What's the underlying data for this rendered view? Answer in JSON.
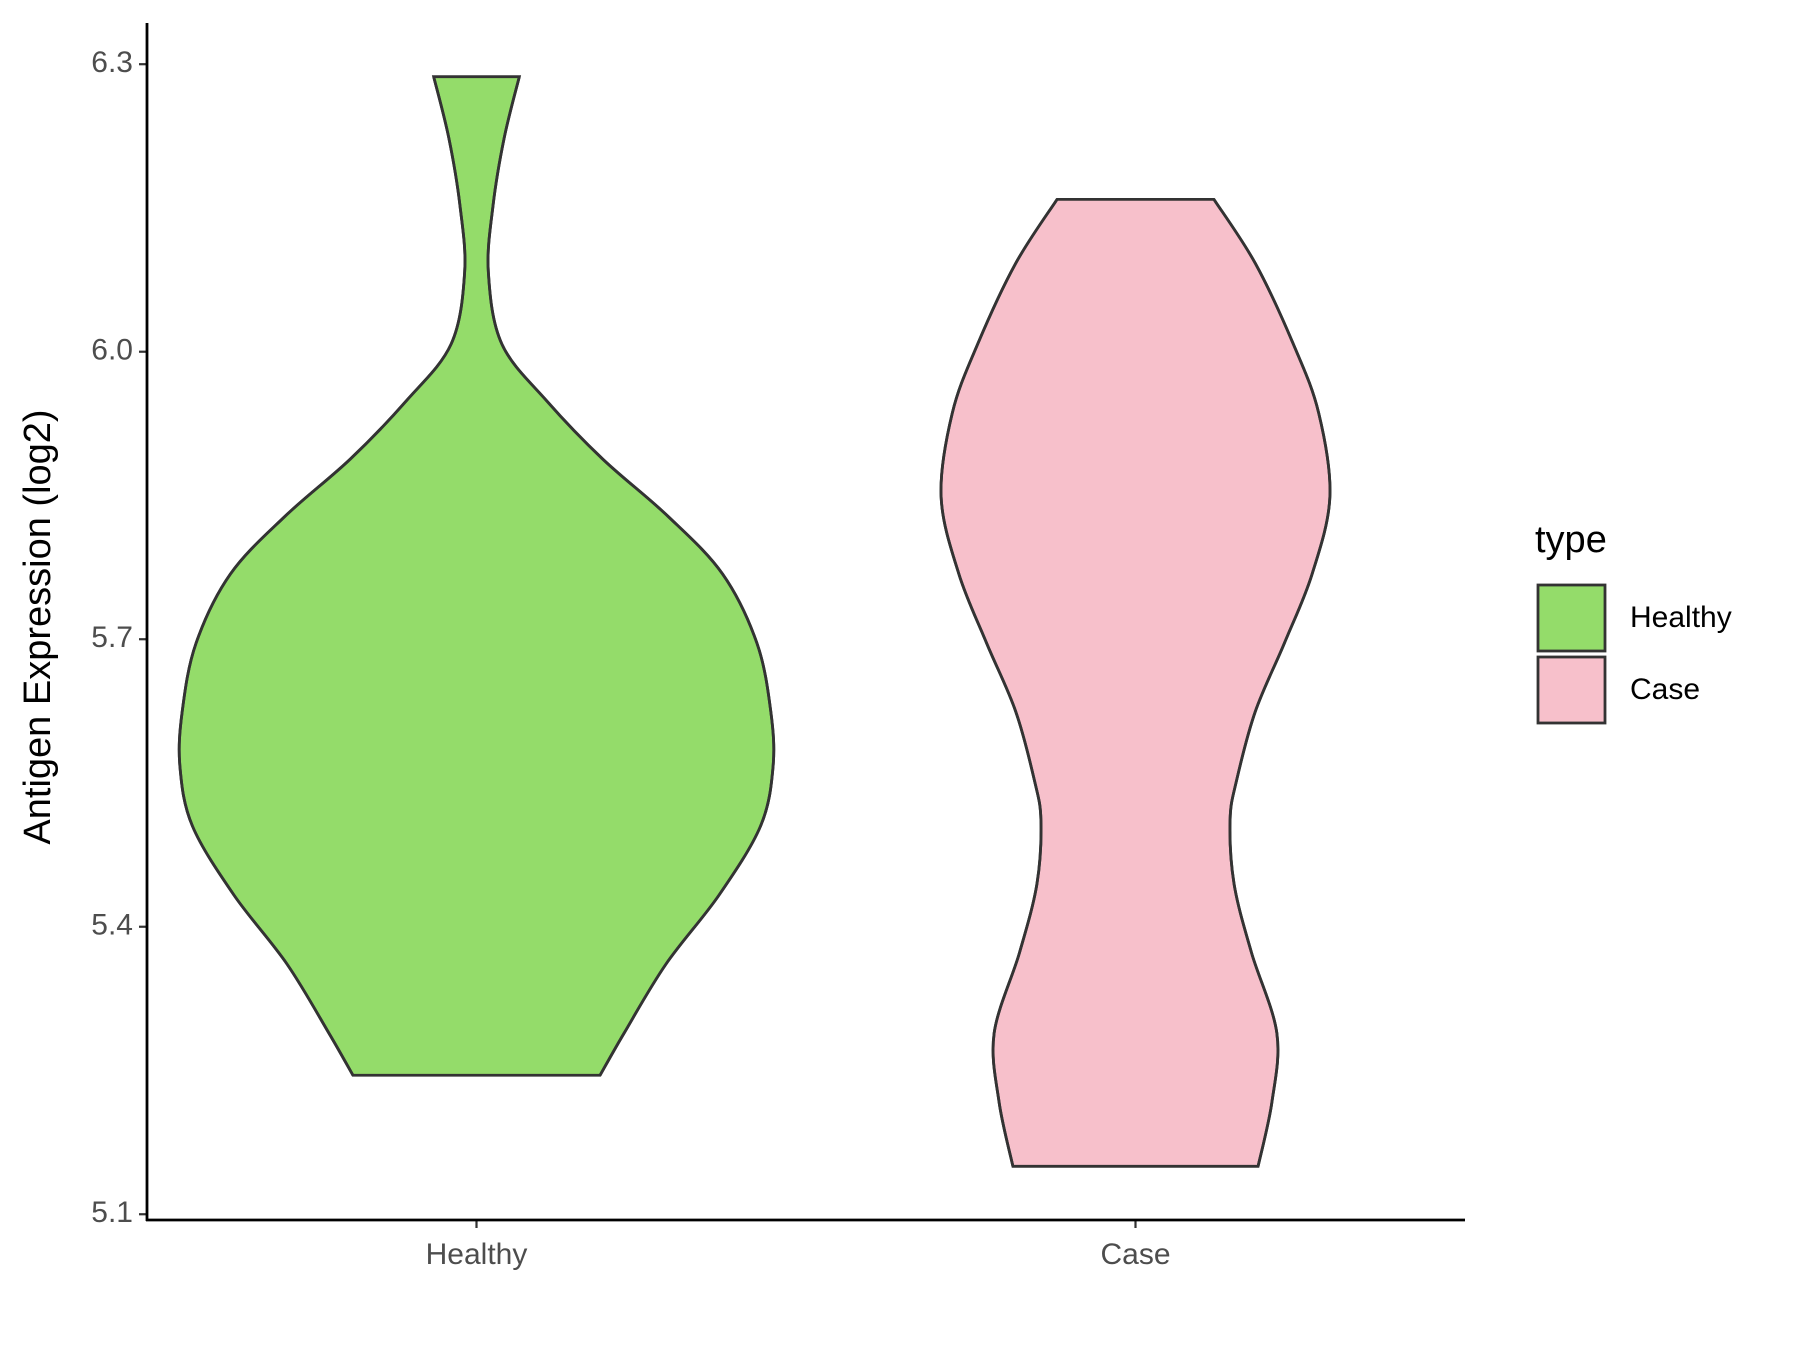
{
  "chart_data": {
    "type": "violin",
    "y_label": "Antigen Expression (log2)",
    "categories": [
      "Healthy",
      "Case"
    ],
    "legend_title": "type",
    "legend_position": "right",
    "ylim": [
      5.094,
      6.343
    ],
    "yticks": [
      5.1,
      5.4,
      5.7,
      {
        "value": 6,
        "label": "6.0"
      },
      6.3
    ],
    "series": [
      {
        "name": "Healthy",
        "color": "#94dc6a",
        "y": [
          6.287,
          6.223,
          6.152,
          6.083,
          6.008,
          5.948,
          5.888,
          5.828,
          5.768,
          5.696,
          5.625,
          5.567,
          5.505,
          5.433,
          5.361,
          5.289,
          5.245
        ],
        "widths": [
          0.13,
          0.084,
          0.05,
          0.036,
          0.077,
          0.215,
          0.383,
          0.582,
          0.747,
          0.851,
          0.893,
          0.9,
          0.862,
          0.736,
          0.575,
          0.448,
          0.375
        ]
      },
      {
        "name": "Case",
        "color": "#f7c0cb",
        "y": [
          6.159,
          6.092,
          6.008,
          5.936,
          5.849,
          5.768,
          5.696,
          5.625,
          5.553,
          5.511,
          5.445,
          5.373,
          5.289,
          5.217,
          5.15
        ],
        "widths": [
          0.238,
          0.364,
          0.479,
          0.556,
          0.59,
          0.536,
          0.452,
          0.364,
          0.307,
          0.287,
          0.299,
          0.352,
          0.429,
          0.414,
          0.372
        ]
      }
    ]
  }
}
